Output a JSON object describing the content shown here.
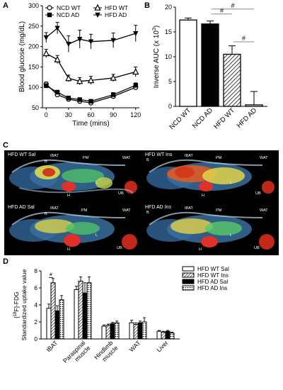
{
  "panels": {
    "a": "A",
    "b": "B",
    "c": "C",
    "d": "D"
  },
  "chart_data": [
    {
      "type": "line",
      "x": [
        0,
        15,
        30,
        45,
        60,
        90,
        120
      ],
      "xlabel": "Time (mins)",
      "ylabel": "Blood glucose (mg/dL)",
      "xticks": [
        "0",
        "30",
        "60",
        "90",
        "120"
      ],
      "yticks": [
        "50",
        "100",
        "150",
        "200",
        "250",
        "300"
      ],
      "ylim": [
        50,
        300
      ],
      "xlim": [
        -5,
        125
      ],
      "series": [
        {
          "name": "NCD WT",
          "marker": "open-circle",
          "values": [
            108,
            82,
            71,
            66,
            62,
            78,
            100
          ],
          "err": [
            5,
            5,
            4,
            4,
            4,
            5,
            6
          ]
        },
        {
          "name": "NCD AD",
          "marker": "filled-square",
          "values": [
            104,
            88,
            74,
            70,
            66,
            82,
            105
          ],
          "err": [
            5,
            5,
            4,
            4,
            4,
            5,
            6
          ]
        },
        {
          "name": "HFD WT",
          "marker": "open-triangle",
          "values": [
            183,
            168,
            122,
            115,
            117,
            123,
            138
          ],
          "err": [
            10,
            10,
            8,
            9,
            10,
            9,
            12
          ]
        },
        {
          "name": "HFD AD",
          "marker": "filled-down-triangle",
          "values": [
            222,
            245,
            206,
            218,
            212,
            215,
            232
          ],
          "err": [
            12,
            14,
            20,
            22,
            18,
            18,
            20
          ]
        }
      ]
    },
    {
      "type": "bar",
      "ylabel": "Inverse AUC (x 10",
      "ylabel_sup": "3",
      "ylabel_end": ")",
      "categories": [
        "NCD WT",
        "NCD AD",
        "HFD WT",
        "HFD AD"
      ],
      "values": [
        17.4,
        16.6,
        10.5,
        0.3
      ],
      "err": [
        0.4,
        0.6,
        1.7,
        2.7
      ],
      "fills": [
        "white",
        "black",
        "hatch",
        "white"
      ],
      "yticks": [
        "0",
        "5",
        "10",
        "15",
        "20"
      ],
      "ylim": [
        0,
        20
      ],
      "sig": [
        {
          "from": 1,
          "to": 2,
          "y": 18.6,
          "label": "#"
        },
        {
          "from": 1,
          "to": 3,
          "y": 19.6,
          "label": "#"
        },
        {
          "from": 2,
          "to": 3,
          "y": 13.0,
          "label": "#"
        }
      ]
    },
    {
      "type": "bar",
      "ylabel_pre": "[",
      "ylabel_sup": "18",
      "ylabel_post": "F]-FDG",
      "ylabel2": "Standardized uptake value",
      "categories": [
        "IBAT",
        "Paraspinal muscle",
        "Hindlimb muscle",
        "WAT",
        "Liver"
      ],
      "category_lines": [
        [
          "IBAT"
        ],
        [
          "Paraspinal",
          "muscle"
        ],
        [
          "Hindlimb",
          "muscle"
        ],
        [
          "WAT"
        ],
        [
          "Liver"
        ]
      ],
      "yticks": [
        "0",
        "2",
        "4",
        "6",
        "8"
      ],
      "ylim": [
        0,
        8
      ],
      "series": [
        {
          "name": "HFD WT Sal",
          "fill": "white",
          "values": [
            3.6,
            5.8,
            1.5,
            1.9,
            0.9
          ],
          "err": [
            0.5,
            0.4,
            0.15,
            0.3,
            0.1
          ]
        },
        {
          "name": "HFD WT Ins",
          "fill": "hatch",
          "values": [
            6.6,
            6.8,
            1.6,
            1.7,
            0.8
          ],
          "err": [
            0.5,
            0.5,
            0.15,
            0.2,
            0.1
          ]
        },
        {
          "name": "HFD AD Sal",
          "fill": "black",
          "values": [
            3.3,
            5.4,
            1.8,
            1.9,
            0.9
          ],
          "err": [
            0.6,
            1.2,
            0.15,
            0.2,
            0.1
          ]
        },
        {
          "name": "HFD AD Ins",
          "fill": "dots",
          "values": [
            4.6,
            6.6,
            1.9,
            2.0,
            0.7
          ],
          "err": [
            0.5,
            0.7,
            0.2,
            0.5,
            0.1
          ]
        }
      ],
      "sig": [
        {
          "category": 0,
          "from": 0,
          "to": 1,
          "y": 7.2,
          "label": "#"
        }
      ]
    }
  ],
  "pet_images": [
    {
      "title": "HFD WT Sal",
      "labels": {
        "b": "B",
        "ibat": "IBAT",
        "pm": "PM",
        "wat": "WAT",
        "h": "H",
        "l": "L",
        "ub": "UB"
      }
    },
    {
      "title": "HFD WT Ins",
      "labels": {
        "b": "B",
        "ibat": "IBAT",
        "pm": "PM",
        "wat": "WAT",
        "h": "H",
        "l": "L",
        "ub": "UB"
      }
    },
    {
      "title": "HFD AD Sal",
      "labels": {
        "b": "B",
        "ibat": "IBAT",
        "pm": "PM",
        "wat": "WAT",
        "h": "H",
        "l": "L",
        "ub": "UB"
      }
    },
    {
      "title": "HFD AD Ins",
      "labels": {
        "b": "B",
        "ibat": "IBAT",
        "pm": "PM",
        "wat": "WAT",
        "h": "H",
        "l": "L",
        "ub": "UB"
      }
    }
  ]
}
